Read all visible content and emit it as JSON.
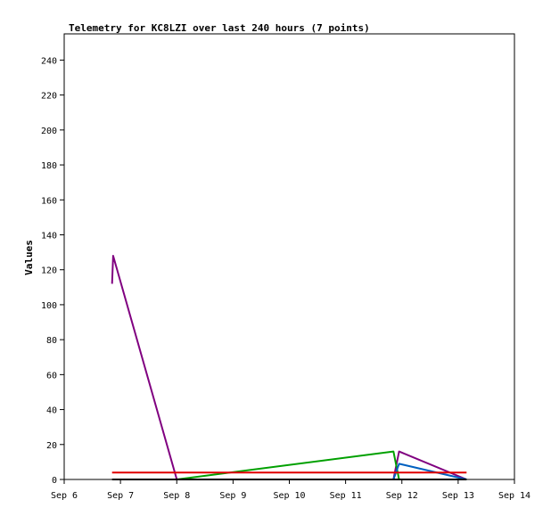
{
  "chart_data": {
    "type": "line",
    "title": "Telemetry for KC8LZI over last 240 hours (7 points)",
    "ylabel": "Values",
    "xlabel": "",
    "x_ticks": [
      "Sep 6",
      "Sep 7",
      "Sep 8",
      "Sep 9",
      "Sep 10",
      "Sep 11",
      "Sep 12",
      "Sep 13",
      "Sep 14"
    ],
    "xlim": [
      0,
      8
    ],
    "ylim": [
      0,
      255
    ],
    "y_ticks": [
      0,
      20,
      40,
      60,
      80,
      100,
      120,
      140,
      160,
      180,
      200,
      220,
      240
    ],
    "grid": false,
    "series": [
      {
        "color": "#800080",
        "x": [
          0.85,
          0.87,
          2.0,
          5.85,
          5.95,
          7.15
        ],
        "y": [
          112,
          128,
          0,
          0,
          16,
          0
        ]
      },
      {
        "color": "#00a000",
        "x": [
          2.0,
          5.85,
          5.95,
          7.15
        ],
        "y": [
          0,
          16,
          0,
          0
        ]
      },
      {
        "color": "#0060c0",
        "x": [
          5.85,
          5.95,
          7.15
        ],
        "y": [
          0,
          9,
          0
        ]
      },
      {
        "color": "#e00000",
        "x": [
          0.85,
          7.15
        ],
        "y": [
          4,
          4
        ]
      },
      {
        "color": "#000000",
        "x": [
          0.85,
          7.15
        ],
        "y": [
          0,
          0
        ]
      }
    ]
  }
}
